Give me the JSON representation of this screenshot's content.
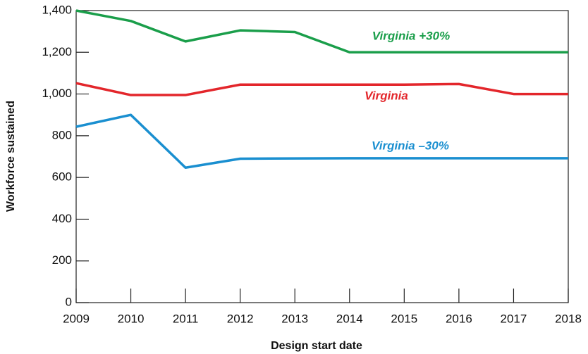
{
  "chart_data": {
    "type": "line",
    "x_label": "Design start date",
    "y_label": "Workforce sustained",
    "x": [
      2009,
      2010,
      2011,
      2012,
      2013,
      2014,
      2015,
      2016,
      2017,
      2018
    ],
    "xlim": [
      2009,
      2018
    ],
    "xticks": [
      2009,
      2010,
      2011,
      2012,
      2013,
      2014,
      2015,
      2016,
      2017,
      2018
    ],
    "ylim": [
      0,
      1400
    ],
    "yticks": [
      0,
      200,
      400,
      600,
      800,
      {
        "value": 1000,
        "label": "1,000"
      },
      {
        "value": 1200,
        "label": "1,200"
      },
      {
        "value": 1400,
        "label": "1,400"
      }
    ],
    "series": [
      {
        "name": "Virginia +30%",
        "color": "#1a9e4a",
        "values": [
          1400,
          1350,
          1252,
          1305,
          1297,
          1200,
          1200,
          1200,
          1200,
          1200
        ]
      },
      {
        "name": "Virginia",
        "color": "#e3262b",
        "values": [
          1052,
          995,
          995,
          1045,
          1045,
          1045,
          1045,
          1048,
          1000,
          1000
        ]
      },
      {
        "name": "Virginia –30%",
        "color": "#1a8fd0",
        "values": [
          843,
          900,
          647,
          690,
          691,
          692,
          692,
          692,
          692,
          692
        ]
      }
    ]
  }
}
